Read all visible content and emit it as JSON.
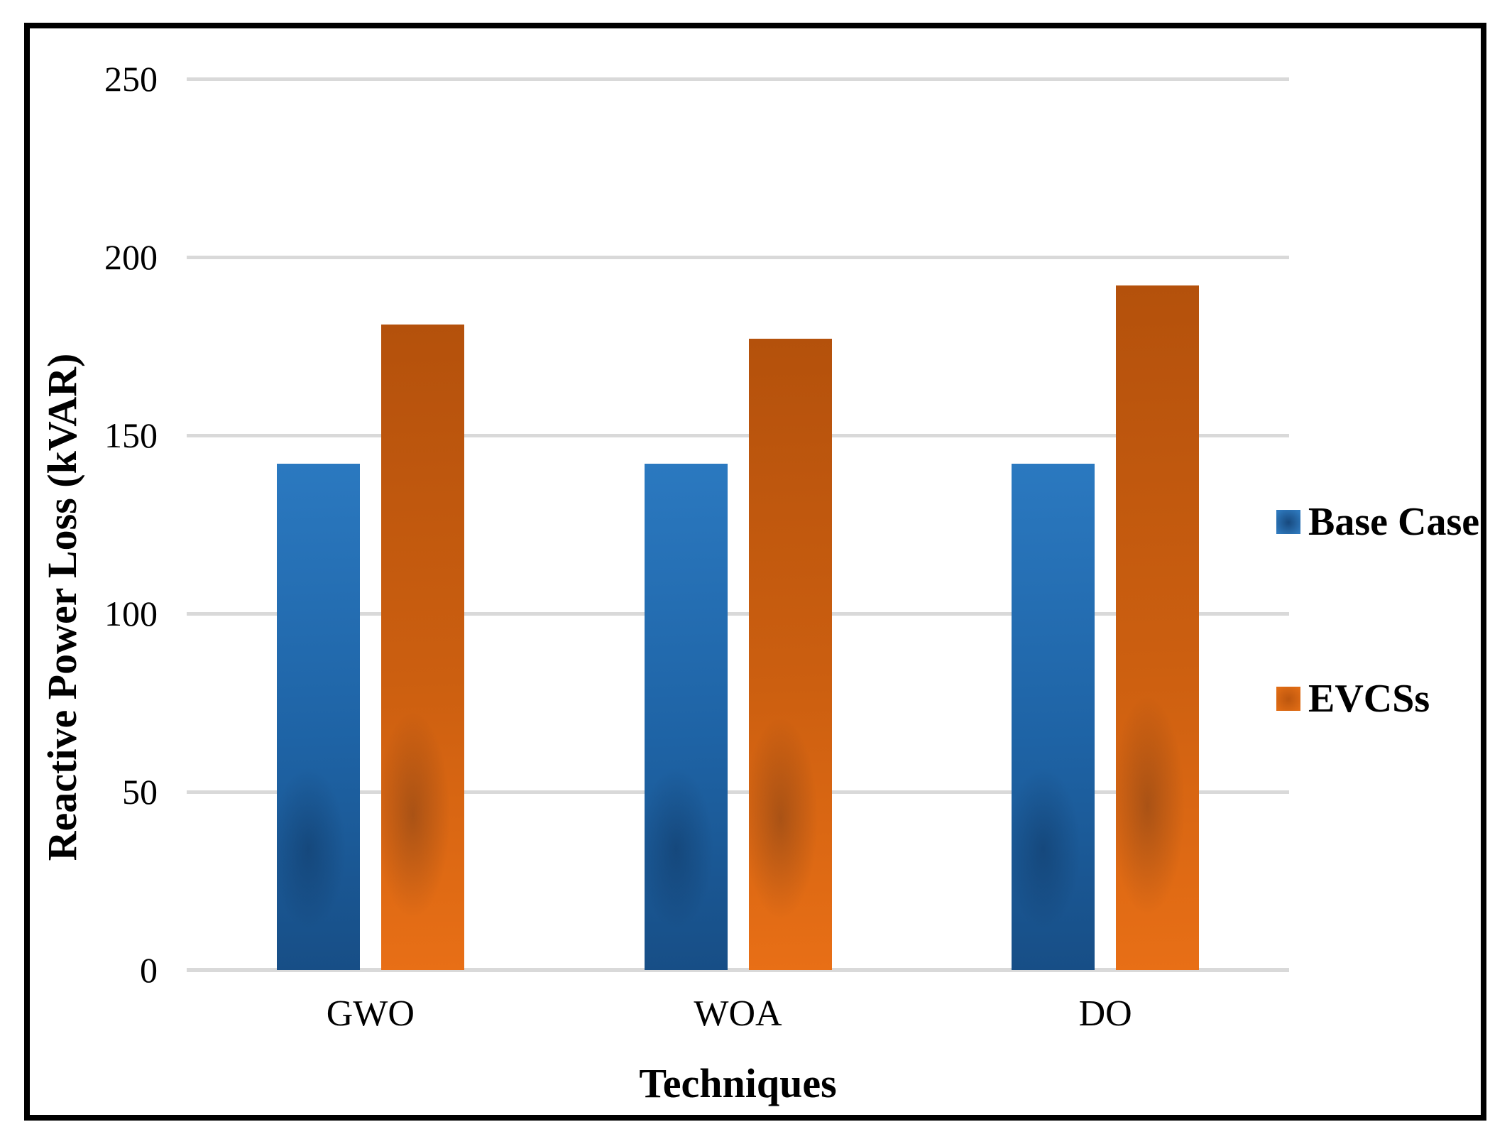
{
  "chart_data": {
    "type": "bar",
    "title": "",
    "xlabel": "Techniques",
    "ylabel": "Reactive Power Loss (kVAR)",
    "categories": [
      "GWO",
      "WOA",
      "DO"
    ],
    "series": [
      {
        "name": "Base Case",
        "values": [
          142,
          142,
          142
        ],
        "color": "#2E75B6",
        "gradient_top": "#2B79C0",
        "gradient_mid": "#1E63A5",
        "gradient_bottom": "#174E86",
        "swatch_center": "#17497E",
        "swatch_edge": "#2E78BC"
      },
      {
        "name": "EVCSs",
        "values": [
          181,
          177,
          192
        ],
        "color": "#C55A11",
        "gradient_top": "#B4510C",
        "gradient_mid": "#CC5F10",
        "gradient_bottom": "#E86F16",
        "swatch_center": "#BC560E",
        "swatch_edge": "#E06C15"
      }
    ],
    "ylim": [
      0,
      250
    ],
    "yticks": [
      0,
      50,
      100,
      150,
      200,
      250
    ],
    "grid": true,
    "gridline_color": "#D9D9D9",
    "axis_line_color": "#D9D9D9",
    "legend_position": "right",
    "text_color": "#000000",
    "background": "#FFFFFF",
    "frame_color": "#000000"
  }
}
